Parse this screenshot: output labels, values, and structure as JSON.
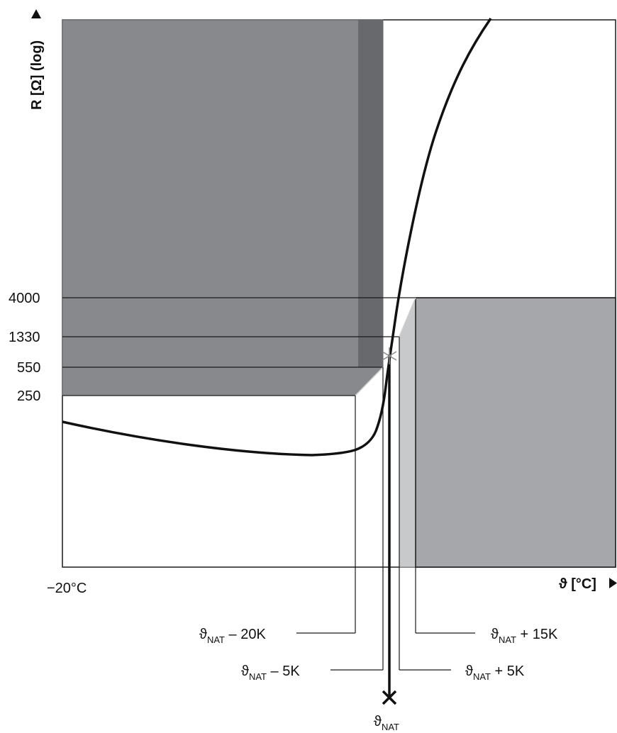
{
  "y_axis": {
    "title": "R [Ω] (log)",
    "ticks": [
      "4000",
      "1330",
      "550",
      "250"
    ]
  },
  "x_axis": {
    "title": "ϑ [°C]",
    "origin_label": "−20°C"
  },
  "markers": {
    "nat_minus_20": {
      "sym": "ϑ",
      "sub": "NAT",
      "rest": " – 20K"
    },
    "nat_minus_5": {
      "sym": "ϑ",
      "sub": "NAT",
      "rest": " – 5K"
    },
    "nat_plus_15": {
      "sym": "ϑ",
      "sub": "NAT",
      "rest": " + 15K"
    },
    "nat_plus_5": {
      "sym": "ϑ",
      "sub": "NAT",
      "rest": " + 5K"
    },
    "nat": {
      "sym": "ϑ",
      "sub": "NAT"
    }
  },
  "colors": {
    "region_dark": "#88898c",
    "region_darker": "#68696c",
    "region_mid": "#a6a7aa",
    "region_light": "#c8c9cb",
    "curve": "#111111",
    "star": "#8a8a8a"
  }
}
